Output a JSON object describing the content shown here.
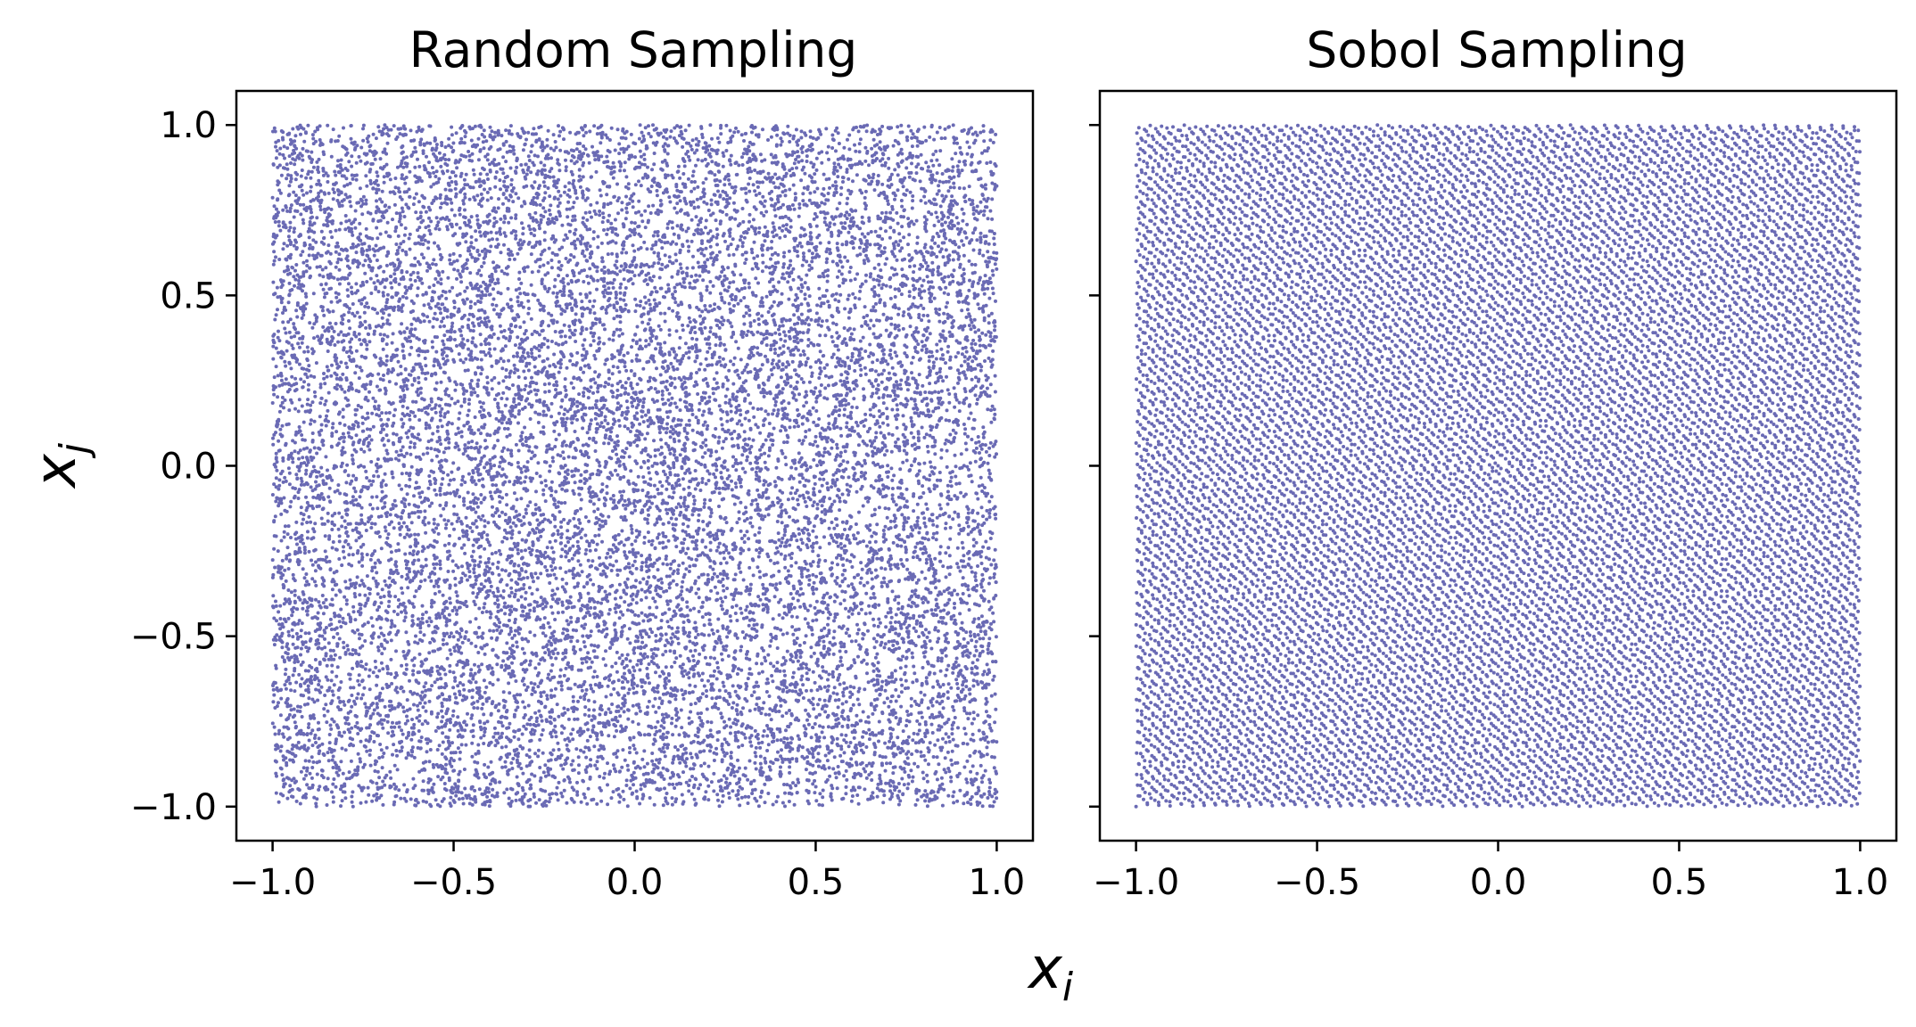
{
  "chart_data": [
    {
      "type": "scatter",
      "title": "Random Sampling",
      "xlim": [
        -1.1,
        1.1
      ],
      "ylim": [
        -1.1,
        1.1
      ],
      "xticks": [
        "−1.0",
        "−0.5",
        "0.0",
        "0.5",
        "1.0"
      ],
      "xtick_values": [
        -1.0,
        -0.5,
        0.0,
        0.5,
        1.0
      ],
      "yticks": [
        "−1.0",
        "−0.5",
        "0.0",
        "0.5",
        "1.0"
      ],
      "ytick_values": [
        -1.0,
        -0.5,
        0.0,
        0.5,
        1.0
      ],
      "series": [
        {
          "sampling": "uniform-random",
          "n_points": 16384,
          "x_range": [
            -1.0,
            1.0
          ],
          "y_range": [
            -1.0,
            1.0
          ]
        }
      ],
      "color": "#1a1a8c",
      "ytick_labels_shown": true
    },
    {
      "type": "scatter",
      "title": "Sobol Sampling",
      "xlim": [
        -1.1,
        1.1
      ],
      "ylim": [
        -1.1,
        1.1
      ],
      "xticks": [
        "−1.0",
        "−0.5",
        "0.0",
        "0.5",
        "1.0"
      ],
      "xtick_values": [
        -1.0,
        -0.5,
        0.0,
        0.5,
        1.0
      ],
      "yticks": [],
      "ytick_values": [
        -1.0,
        -0.5,
        0.0,
        0.5,
        1.0
      ],
      "series": [
        {
          "sampling": "sobol",
          "n_points": 16384,
          "x_range": [
            -1.0,
            1.0
          ],
          "y_range": [
            -1.0,
            1.0
          ]
        }
      ],
      "color": "#1a1a8c",
      "ytick_labels_shown": false
    }
  ],
  "shared": {
    "xlabel_base": "x",
    "xlabel_sub": "i",
    "ylabel_base": "x",
    "ylabel_sub": "j"
  }
}
